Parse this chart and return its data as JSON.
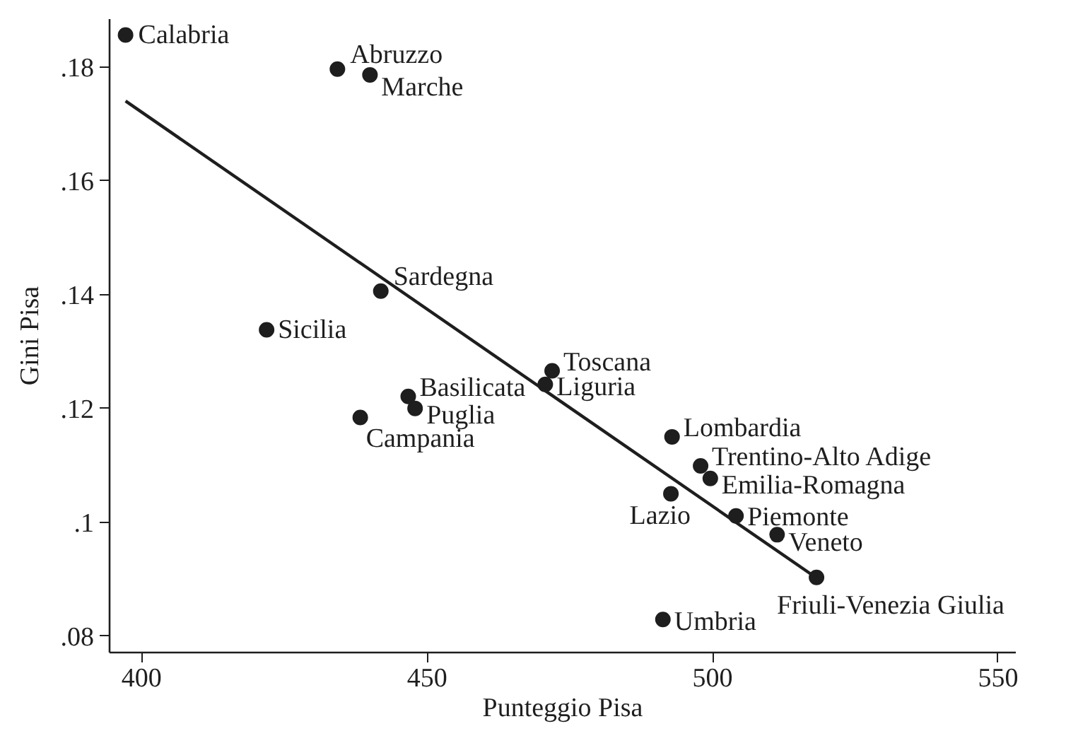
{
  "chart_data": {
    "type": "scatter",
    "xlabel": "Punteggio Pisa",
    "ylabel": "Gini Pisa",
    "xlim": [
      394.4,
      553.1
    ],
    "ylim": [
      0.0771,
      0.1884
    ],
    "xticks": [
      400,
      450,
      500,
      550
    ],
    "yticks": [
      {
        "value": 0.08,
        "label": ".08"
      },
      {
        "value": 0.1,
        "label": ".1"
      },
      {
        "value": 0.12,
        "label": ".12"
      },
      {
        "value": 0.14,
        "label": ".14"
      },
      {
        "value": 0.16,
        "label": ".16"
      },
      {
        "value": 0.18,
        "label": ".18"
      }
    ],
    "grid": false,
    "series": [
      {
        "color": "#1e1e1e",
        "marker": "circle",
        "x": [
          397.2,
          434.3,
          440.0,
          441.9,
          421.9,
          446.7,
          447.9,
          438.3,
          471.9,
          470.7,
          492.9,
          497.9,
          499.6,
          492.7,
          504.1,
          511.3,
          518.2,
          491.3
        ],
        "values": [
          0.1856,
          0.1796,
          0.1786,
          0.1406,
          0.1338,
          0.1221,
          0.12,
          0.1184,
          0.1266,
          0.1242,
          0.115,
          0.1099,
          0.1077,
          0.105,
          0.1011,
          0.0978,
          0.0903,
          0.0829
        ]
      },
      {
        "type": "line",
        "color": "#1e1e1e",
        "x": [
          397.2,
          518.2
        ],
        "values": [
          0.174,
          0.0902
        ]
      }
    ],
    "annotations": [
      {
        "text": "Calabria",
        "x": 397.2,
        "y": 0.1856
      },
      {
        "text": "Abruzzo",
        "x": 434.3,
        "y": 0.1796
      },
      {
        "text": "Marche",
        "x": 440.0,
        "y": 0.1786
      },
      {
        "text": "Sardegna",
        "x": 441.9,
        "y": 0.1406
      },
      {
        "text": "Sicilia",
        "x": 421.9,
        "y": 0.1338
      },
      {
        "text": "Basilicata",
        "x": 446.7,
        "y": 0.1221
      },
      {
        "text": "Puglia",
        "x": 447.9,
        "y": 0.12
      },
      {
        "text": "Campania",
        "x": 438.3,
        "y": 0.1184
      },
      {
        "text": "Toscana",
        "x": 471.9,
        "y": 0.1266
      },
      {
        "text": "Liguria",
        "x": 470.7,
        "y": 0.1242
      },
      {
        "text": "Lombardia",
        "x": 492.9,
        "y": 0.115
      },
      {
        "text": "Trentino-Alto Adige",
        "x": 497.9,
        "y": 0.1099
      },
      {
        "text": "Emilia-Romagna",
        "x": 499.6,
        "y": 0.1077
      },
      {
        "text": "Lazio",
        "x": 492.7,
        "y": 0.105
      },
      {
        "text": "Piemonte",
        "x": 504.1,
        "y": 0.1011
      },
      {
        "text": "Veneto",
        "x": 511.3,
        "y": 0.0978
      },
      {
        "text": "Friuli-Venezia Giulia",
        "x": 518.2,
        "y": 0.0903
      },
      {
        "text": "Umbria",
        "x": 491.3,
        "y": 0.0829
      }
    ]
  }
}
